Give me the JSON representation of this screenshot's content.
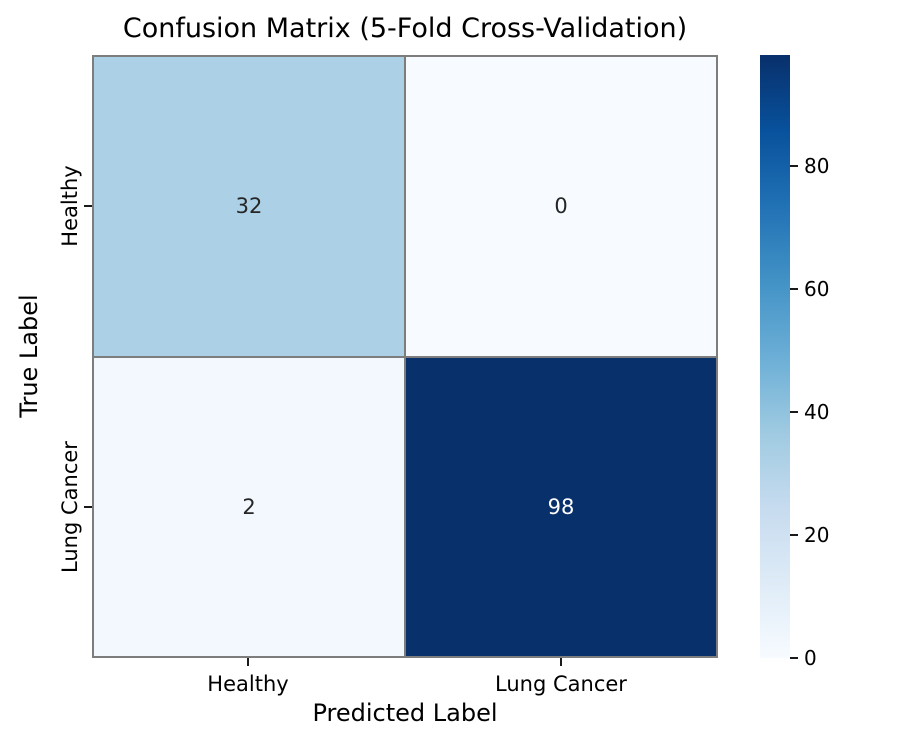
{
  "chart_data": {
    "type": "heatmap",
    "title": "Confusion Matrix (5-Fold Cross-Validation)",
    "xlabel": "Predicted Label",
    "ylabel": "True Label",
    "x_categories": [
      "Healthy",
      "Lung Cancer"
    ],
    "y_categories": [
      "Healthy",
      "Lung Cancer"
    ],
    "values": [
      [
        32,
        0
      ],
      [
        2,
        98
      ]
    ],
    "vmin": 0,
    "vmax": 98,
    "colormap": "Blues",
    "grid_on": false,
    "legend": "colorbar-right",
    "colorbar_ticks": [
      0,
      20,
      40,
      60,
      80
    ],
    "cell_colors": [
      [
        "#acd0e5",
        "#f7fbff"
      ],
      [
        "#f3f8fe",
        "#08306b"
      ]
    ],
    "cell_text_colors": [
      [
        "#262626",
        "#262626"
      ],
      [
        "#262626",
        "#ffffff"
      ]
    ],
    "grid_line_color": "#7d7d7d",
    "colormap_stops_top_to_bottom": [
      "#08306b",
      "#08519c",
      "#2171b5",
      "#4292c6",
      "#6baed6",
      "#9ecae1",
      "#c6dbef",
      "#deebf7",
      "#f7fbff"
    ]
  }
}
